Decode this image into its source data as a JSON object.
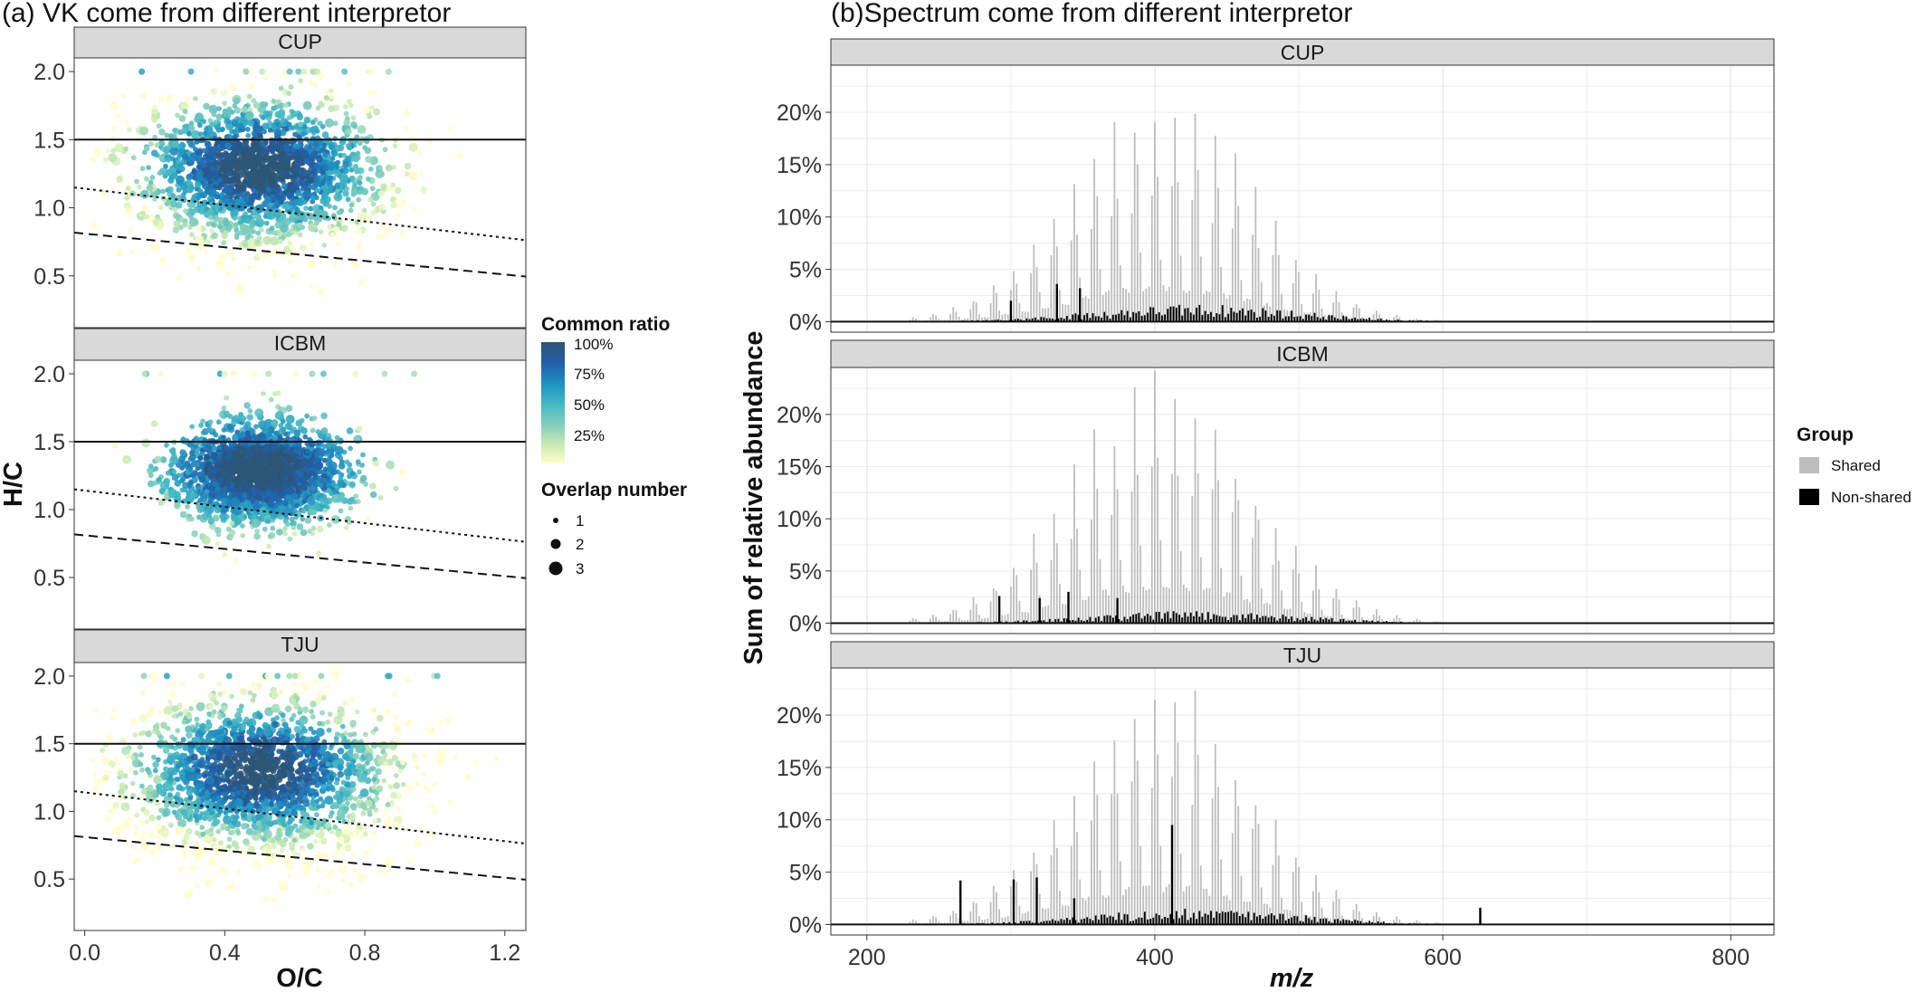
{
  "figure": {
    "title_a": "(a) VK come from different interpretor",
    "title_b": "(b)Spectrum come from different interpretor"
  },
  "chart_data": [
    {
      "type": "scatter",
      "panel": "a",
      "title": "(a) VK come from different interpretor",
      "xlabel": "O/C",
      "ylabel": "H/C",
      "xlim": [
        -0.03,
        1.26
      ],
      "ylim": [
        0.12,
        2.1
      ],
      "x_ticks": [
        0.0,
        0.4,
        0.8,
        1.2
      ],
      "x_tick_labels": [
        "0.0",
        "0.4",
        "0.8",
        "1.2"
      ],
      "y_ticks": [
        0.5,
        1.0,
        1.5,
        2.0
      ],
      "y_tick_labels": [
        "0.5",
        "1.0",
        "1.5",
        "2.0"
      ],
      "facets": [
        {
          "label": "CUP",
          "spread": 1.0
        },
        {
          "label": "ICBM",
          "spread": 0.72
        },
        {
          "label": "TJU",
          "spread": 1.15
        }
      ],
      "reference_lines": [
        {
          "style": "solid",
          "intercept": 1.5,
          "slope": 0
        },
        {
          "style": "dotted",
          "intercept": 1.14,
          "slope": -0.3
        },
        {
          "style": "dashed",
          "intercept": 0.81,
          "slope": -0.25
        }
      ],
      "legend": {
        "color_title": "Common ratio",
        "color_stops": [
          "#ffffcc",
          "#c7e9b4",
          "#7fcdbb",
          "#41b6c4",
          "#1d91c0",
          "#225ea8",
          "#2b5676"
        ],
        "color_labels": [
          "100%",
          "75%",
          "50%",
          "25%"
        ],
        "size_title": "Overlap number",
        "size_labels": [
          "1",
          "2",
          "3"
        ],
        "placement": "right"
      }
    },
    {
      "type": "bar",
      "panel": "b",
      "title": "(b)Spectrum come from different interpretor",
      "xlabel": "m/z",
      "ylabel": "Sum of relative abundance",
      "xlim": [
        175,
        830
      ],
      "ylim": [
        -0.01,
        0.245
      ],
      "x_ticks": [
        200,
        400,
        600,
        800
      ],
      "x_tick_labels": [
        "200",
        "400",
        "600",
        "800"
      ],
      "y_ticks": [
        0,
        0.05,
        0.1,
        0.15,
        0.2
      ],
      "y_tick_labels": [
        "0%",
        "5%",
        "10%",
        "15%",
        "20%"
      ],
      "facets": [
        {
          "label": "CUP",
          "peak": 0.205,
          "nonshared_level": 0.014,
          "spikes": [
            [
              332,
              0.036
            ],
            [
              348,
              0.032
            ],
            [
              300,
              0.02
            ]
          ]
        },
        {
          "label": "ICBM",
          "peak": 0.227,
          "nonshared_level": 0.01,
          "spikes": [
            [
              292,
              0.026
            ],
            [
              320,
              0.024
            ],
            [
              340,
              0.03
            ],
            [
              374,
              0.024
            ]
          ]
        },
        {
          "label": "TJU",
          "peak": 0.225,
          "nonshared_level": 0.013,
          "spikes": [
            [
              265,
              0.042
            ],
            [
              302,
              0.043
            ],
            [
              318,
              0.045
            ],
            [
              344,
              0.025
            ],
            [
              412,
              0.095
            ],
            [
              626,
              0.016
            ]
          ]
        }
      ],
      "legend": {
        "title": "Group",
        "entries": [
          {
            "name": "Shared",
            "color": "#bdbdbd"
          },
          {
            "name": "Non-shared",
            "color": "#000000"
          }
        ],
        "placement": "right"
      }
    }
  ]
}
